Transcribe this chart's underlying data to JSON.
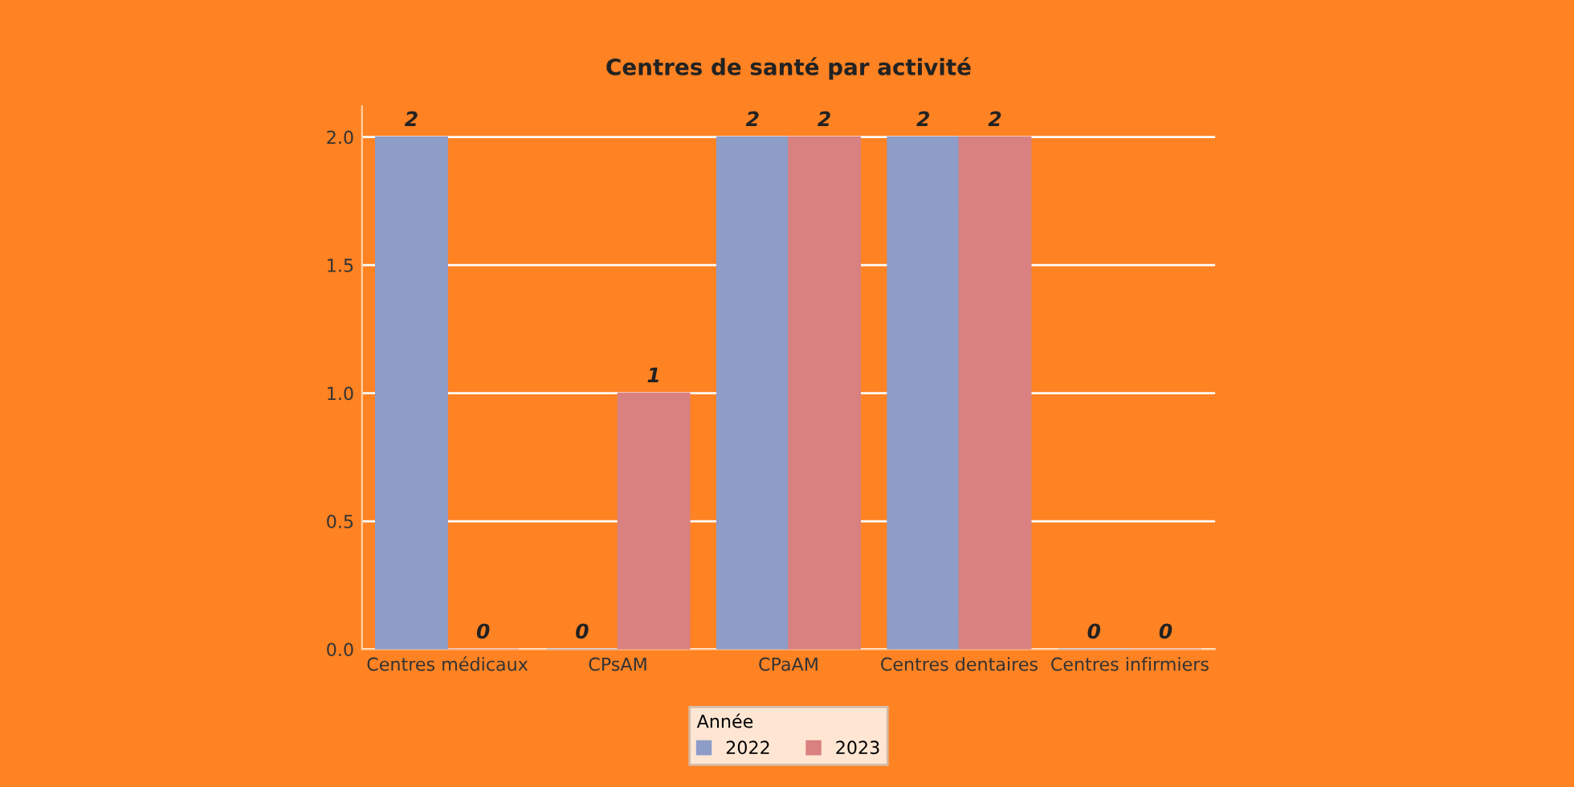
{
  "chart_data": {
    "type": "bar",
    "title": "Centres de santé par activité",
    "categories": [
      "Centres médicaux",
      "CPsAM",
      "CPaAM",
      "Centres dentaires",
      "Centres infirmiers"
    ],
    "series": [
      {
        "name": "2022",
        "color": "#8e9cc8",
        "values": [
          2,
          0,
          2,
          2,
          0
        ]
      },
      {
        "name": "2023",
        "color": "#d98080",
        "values": [
          0,
          1,
          2,
          2,
          0
        ]
      }
    ],
    "ylim": [
      0,
      2.12
    ],
    "yticks": [
      "0.0",
      "0.5",
      "1.0",
      "1.5",
      "2.0"
    ],
    "grid": "y",
    "legend": "bottom",
    "legend_title": "Année",
    "data_labels": true
  }
}
